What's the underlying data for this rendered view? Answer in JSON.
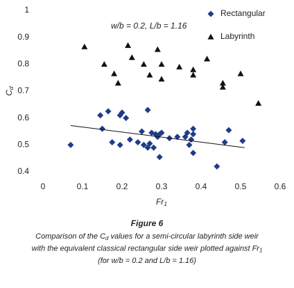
{
  "chart_data": {
    "type": "scatter",
    "subtitle": "w/b = 0.2, L/b = 1.16",
    "xlabel": [
      "Fr",
      "1"
    ],
    "ylabel": [
      "C",
      "d"
    ],
    "xlim": [
      0,
      0.6
    ],
    "xticks": [
      0,
      0.1,
      0.2,
      0.3,
      0.4,
      0.5,
      0.6
    ],
    "ylim": [
      0.4,
      1
    ],
    "yticks": [
      0.4,
      0.5,
      0.6,
      0.7,
      0.8,
      0.9,
      1
    ],
    "grid": false,
    "legend": "top-right",
    "series": [
      {
        "name": "Rectangular",
        "color": "#1f3c88",
        "marker": "diamond",
        "x": [
          0.07,
          0.145,
          0.15,
          0.165,
          0.175,
          0.195,
          0.2,
          0.195,
          0.21,
          0.22,
          0.24,
          0.25,
          0.255,
          0.265,
          0.265,
          0.27,
          0.275,
          0.28,
          0.285,
          0.29,
          0.295,
          0.295,
          0.3,
          0.32,
          0.34,
          0.36,
          0.365,
          0.37,
          0.375,
          0.38,
          0.38,
          0.38,
          0.44,
          0.46,
          0.47,
          0.505
        ],
        "values": [
          0.5,
          0.61,
          0.56,
          0.625,
          0.51,
          0.61,
          0.62,
          0.5,
          0.6,
          0.52,
          0.51,
          0.55,
          0.5,
          0.63,
          0.49,
          0.505,
          0.545,
          0.49,
          0.54,
          0.53,
          0.455,
          0.54,
          0.545,
          0.525,
          0.53,
          0.53,
          0.545,
          0.5,
          0.52,
          0.54,
          0.56,
          0.47,
          0.42,
          0.51,
          0.555,
          0.515
        ]
      },
      {
        "name": "Labyrinth",
        "color": "#111111",
        "marker": "triangle",
        "x": [
          0.105,
          0.155,
          0.18,
          0.19,
          0.215,
          0.225,
          0.255,
          0.27,
          0.29,
          0.3,
          0.3,
          0.345,
          0.38,
          0.38,
          0.415,
          0.455,
          0.455,
          0.5,
          0.545
        ],
        "values": [
          0.865,
          0.8,
          0.765,
          0.73,
          0.87,
          0.825,
          0.8,
          0.76,
          0.855,
          0.745,
          0.8,
          0.79,
          0.76,
          0.78,
          0.82,
          0.715,
          0.73,
          0.765,
          0.655
        ]
      }
    ],
    "trendline": {
      "color": "#111111",
      "x": [
        0.07,
        0.51
      ],
      "y": [
        0.572,
        0.49
      ]
    }
  },
  "figure": {
    "label": "Figure 6",
    "caption": [
      [
        "Comparison of the C",
        "d",
        " values for a semi-circular labyrinth side weir"
      ],
      [
        "with the equivalent classical rectangular side weir plotted against Fr",
        "1"
      ],
      [
        "(for w/b = 0.2 and L/b = 1.16)"
      ]
    ]
  }
}
